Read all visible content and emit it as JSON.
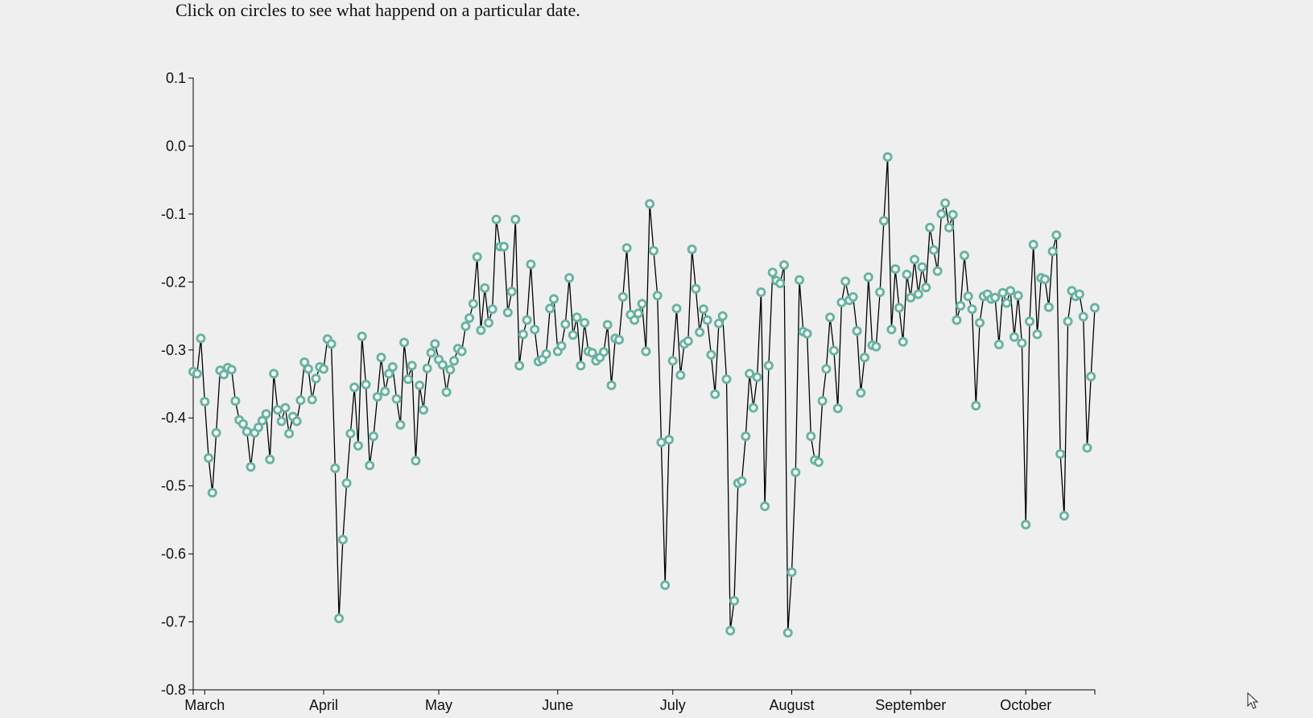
{
  "page": {
    "title": "Click on circles to see what happend on a particular date."
  },
  "colors": {
    "point_stroke": "#69b3a2",
    "point_fill": "#ffffff",
    "line": "#000000",
    "background": "#efefef"
  },
  "chart_data": {
    "type": "line",
    "title": "",
    "xlabel": "",
    "ylabel": "",
    "ylim": [
      -0.8,
      0.1
    ],
    "yticks": [
      0.1,
      0.0,
      -0.1,
      -0.2,
      -0.3,
      -0.4,
      -0.5,
      -0.6,
      -0.7,
      -0.8
    ],
    "ytick_labels": [
      "0.1",
      "0.0",
      "-0.1",
      "-0.2",
      "-0.3",
      "-0.4",
      "-0.5",
      "-0.6",
      "-0.7",
      "-0.8"
    ],
    "x_start": "2020-02-27",
    "x_end": "2020-10-19",
    "xticks": [
      "2020-03-01",
      "2020-04-01",
      "2020-05-01",
      "2020-06-01",
      "2020-07-01",
      "2020-08-01",
      "2020-09-01",
      "2020-10-01"
    ],
    "xtick_labels": [
      "March",
      "April",
      "May",
      "June",
      "July",
      "August",
      "September",
      "October"
    ],
    "grid": false,
    "series": [
      {
        "x": [
          "2020-02-27",
          "2020-02-28",
          "2020-02-29",
          "2020-03-01",
          "2020-03-02",
          "2020-03-03",
          "2020-03-04",
          "2020-03-05",
          "2020-03-06",
          "2020-03-07",
          "2020-03-08",
          "2020-03-09",
          "2020-03-10",
          "2020-03-11",
          "2020-03-12",
          "2020-03-13",
          "2020-03-14",
          "2020-03-15",
          "2020-03-16",
          "2020-03-17",
          "2020-03-18",
          "2020-03-19",
          "2020-03-20",
          "2020-03-21",
          "2020-03-22",
          "2020-03-23",
          "2020-03-24",
          "2020-03-25",
          "2020-03-26",
          "2020-03-27",
          "2020-03-28",
          "2020-03-29",
          "2020-03-30",
          "2020-03-31",
          "2020-04-01",
          "2020-04-02",
          "2020-04-03",
          "2020-04-04",
          "2020-04-05",
          "2020-04-06",
          "2020-04-07",
          "2020-04-08",
          "2020-04-09",
          "2020-04-10",
          "2020-04-11",
          "2020-04-12",
          "2020-04-13",
          "2020-04-14",
          "2020-04-15",
          "2020-04-16",
          "2020-04-17",
          "2020-04-18",
          "2020-04-19",
          "2020-04-20",
          "2020-04-21",
          "2020-04-22",
          "2020-04-23",
          "2020-04-24",
          "2020-04-25",
          "2020-04-26",
          "2020-04-27",
          "2020-04-28",
          "2020-04-29",
          "2020-04-30",
          "2020-05-01",
          "2020-05-02",
          "2020-05-03",
          "2020-05-04",
          "2020-05-05",
          "2020-05-06",
          "2020-05-07",
          "2020-05-08",
          "2020-05-09",
          "2020-05-10",
          "2020-05-11",
          "2020-05-12",
          "2020-05-13",
          "2020-05-14",
          "2020-05-15",
          "2020-05-16",
          "2020-05-17",
          "2020-05-18",
          "2020-05-19",
          "2020-05-20",
          "2020-05-21",
          "2020-05-22",
          "2020-05-23",
          "2020-05-24",
          "2020-05-25",
          "2020-05-26",
          "2020-05-27",
          "2020-05-28",
          "2020-05-29",
          "2020-05-30",
          "2020-05-31",
          "2020-06-01",
          "2020-06-02",
          "2020-06-03",
          "2020-06-04",
          "2020-06-05",
          "2020-06-06",
          "2020-06-07",
          "2020-06-08",
          "2020-06-09",
          "2020-06-10",
          "2020-06-11",
          "2020-06-12",
          "2020-06-13",
          "2020-06-14",
          "2020-06-15",
          "2020-06-16",
          "2020-06-17",
          "2020-06-18",
          "2020-06-19",
          "2020-06-20",
          "2020-06-21",
          "2020-06-22",
          "2020-06-23",
          "2020-06-24",
          "2020-06-25",
          "2020-06-26",
          "2020-06-27",
          "2020-06-28",
          "2020-06-29",
          "2020-06-30",
          "2020-07-01",
          "2020-07-02",
          "2020-07-03",
          "2020-07-04",
          "2020-07-05",
          "2020-07-06",
          "2020-07-07",
          "2020-07-08",
          "2020-07-09",
          "2020-07-10",
          "2020-07-11",
          "2020-07-12",
          "2020-07-13",
          "2020-07-14",
          "2020-07-15",
          "2020-07-16",
          "2020-07-17",
          "2020-07-18",
          "2020-07-19",
          "2020-07-20",
          "2020-07-21",
          "2020-07-22",
          "2020-07-23",
          "2020-07-24",
          "2020-07-25",
          "2020-07-26",
          "2020-07-27",
          "2020-07-28",
          "2020-07-29",
          "2020-07-30",
          "2020-07-31",
          "2020-08-01",
          "2020-08-02",
          "2020-08-03",
          "2020-08-04",
          "2020-08-05",
          "2020-08-06",
          "2020-08-07",
          "2020-08-08",
          "2020-08-09",
          "2020-08-10",
          "2020-08-11",
          "2020-08-12",
          "2020-08-13",
          "2020-08-14",
          "2020-08-15",
          "2020-08-16",
          "2020-08-17",
          "2020-08-18",
          "2020-08-19",
          "2020-08-20",
          "2020-08-21",
          "2020-08-22",
          "2020-08-23",
          "2020-08-24",
          "2020-08-25",
          "2020-08-26",
          "2020-08-27",
          "2020-08-28",
          "2020-08-29",
          "2020-08-30",
          "2020-08-31",
          "2020-09-01",
          "2020-09-02",
          "2020-09-03",
          "2020-09-04",
          "2020-09-05",
          "2020-09-06",
          "2020-09-07",
          "2020-09-08",
          "2020-09-09",
          "2020-09-10",
          "2020-09-11",
          "2020-09-12",
          "2020-09-13",
          "2020-09-14",
          "2020-09-15",
          "2020-09-16",
          "2020-09-17",
          "2020-09-18",
          "2020-09-19",
          "2020-09-20",
          "2020-09-21",
          "2020-09-22",
          "2020-09-23",
          "2020-09-24",
          "2020-09-25",
          "2020-09-26",
          "2020-09-27",
          "2020-09-28",
          "2020-09-29",
          "2020-09-30",
          "2020-10-01",
          "2020-10-02",
          "2020-10-03",
          "2020-10-04",
          "2020-10-05",
          "2020-10-06",
          "2020-10-07",
          "2020-10-08",
          "2020-10-09",
          "2020-10-10",
          "2020-10-11",
          "2020-10-12",
          "2020-10-13",
          "2020-10-14",
          "2020-10-15",
          "2020-10-16",
          "2020-10-17",
          "2020-10-18",
          "2020-10-19"
        ],
        "values": [
          -0.332,
          -0.335,
          -0.283,
          -0.376,
          -0.459,
          -0.51,
          -0.422,
          -0.33,
          -0.336,
          -0.326,
          -0.329,
          -0.375,
          -0.403,
          -0.409,
          -0.42,
          -0.472,
          -0.422,
          -0.414,
          -0.404,
          -0.394,
          -0.461,
          -0.335,
          -0.388,
          -0.405,
          -0.385,
          -0.423,
          -0.398,
          -0.405,
          -0.374,
          -0.318,
          -0.328,
          -0.373,
          -0.342,
          -0.325,
          -0.328,
          -0.284,
          -0.291,
          -0.474,
          -0.695,
          -0.579,
          -0.496,
          -0.423,
          -0.355,
          -0.441,
          -0.28,
          -0.351,
          -0.47,
          -0.427,
          -0.369,
          -0.311,
          -0.361,
          -0.335,
          -0.325,
          -0.372,
          -0.41,
          -0.289,
          -0.343,
          -0.323,
          -0.463,
          -0.352,
          -0.388,
          -0.327,
          -0.304,
          -0.291,
          -0.314,
          -0.322,
          -0.362,
          -0.329,
          -0.316,
          -0.298,
          -0.302,
          -0.265,
          -0.253,
          -0.232,
          -0.163,
          -0.271,
          -0.209,
          -0.26,
          -0.24,
          -0.108,
          -0.148,
          -0.148,
          -0.245,
          -0.214,
          -0.108,
          -0.323,
          -0.277,
          -0.256,
          -0.174,
          -0.27,
          -0.317,
          -0.314,
          -0.306,
          -0.239,
          -0.225,
          -0.302,
          -0.294,
          -0.262,
          -0.194,
          -0.278,
          -0.252,
          -0.323,
          -0.26,
          -0.302,
          -0.304,
          -0.316,
          -0.311,
          -0.303,
          -0.263,
          -0.352,
          -0.283,
          -0.285,
          -0.222,
          -0.15,
          -0.248,
          -0.256,
          -0.246,
          -0.232,
          -0.302,
          -0.085,
          -0.154,
          -0.22,
          -0.436,
          -0.646,
          -0.432,
          -0.316,
          -0.239,
          -0.337,
          -0.291,
          -0.287,
          -0.152,
          -0.21,
          -0.274,
          -0.24,
          -0.256,
          -0.307,
          -0.365,
          -0.261,
          -0.25,
          -0.343,
          -0.713,
          -0.669,
          -0.496,
          -0.493,
          -0.427,
          -0.335,
          -0.385,
          -0.34,
          -0.215,
          -0.53,
          -0.323,
          -0.186,
          -0.198,
          -0.202,
          -0.175,
          -0.716,
          -0.627,
          -0.48,
          -0.197,
          -0.273,
          -0.276,
          -0.427,
          -0.462,
          -0.465,
          -0.375,
          -0.328,
          -0.252,
          -0.301,
          -0.386,
          -0.23,
          -0.199,
          -0.227,
          -0.222,
          -0.272,
          -0.363,
          -0.311,
          -0.193,
          -0.293,
          -0.295,
          -0.215,
          -0.11,
          -0.016,
          -0.27,
          -0.181,
          -0.238,
          -0.288,
          -0.189,
          -0.223,
          -0.167,
          -0.218,
          -0.178,
          -0.208,
          -0.12,
          -0.153,
          -0.184,
          -0.1,
          -0.084,
          -0.12,
          -0.101,
          -0.256,
          -0.235,
          -0.161,
          -0.221,
          -0.24,
          -0.382,
          -0.26,
          -0.221,
          -0.218,
          -0.225,
          -0.223,
          -0.292,
          -0.216,
          -0.231,
          -0.213,
          -0.281,
          -0.22,
          -0.29,
          -0.557,
          -0.258,
          -0.145,
          -0.277,
          -0.194,
          -0.196,
          -0.237,
          -0.155,
          -0.131,
          -0.453,
          -0.544,
          -0.258,
          -0.213,
          -0.221,
          -0.218,
          -0.251,
          -0.444,
          -0.339,
          -0.238
        ]
      }
    ]
  }
}
